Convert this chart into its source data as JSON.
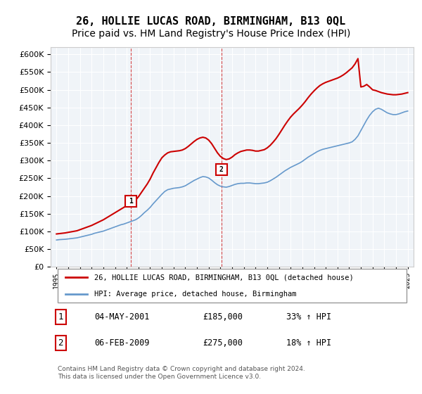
{
  "title": "26, HOLLIE LUCAS ROAD, BIRMINGHAM, B13 0QL",
  "subtitle": "Price paid vs. HM Land Registry's House Price Index (HPI)",
  "title_fontsize": 11,
  "subtitle_fontsize": 10,
  "background_color": "#ffffff",
  "plot_bg_color": "#f0f4f8",
  "grid_color": "#ffffff",
  "sale1_date": 2001.34,
  "sale1_price": 185000,
  "sale1_label": "1",
  "sale2_date": 2009.09,
  "sale2_price": 275000,
  "sale2_label": "2",
  "ylim": [
    0,
    620000
  ],
  "xlim": [
    1994.5,
    2025.5
  ],
  "yticks": [
    0,
    50000,
    100000,
    150000,
    200000,
    250000,
    300000,
    350000,
    400000,
    450000,
    500000,
    550000,
    600000
  ],
  "xtick_years": [
    1995,
    1996,
    1997,
    1998,
    1999,
    2000,
    2001,
    2002,
    2003,
    2004,
    2005,
    2006,
    2007,
    2008,
    2009,
    2010,
    2011,
    2012,
    2013,
    2014,
    2015,
    2016,
    2017,
    2018,
    2019,
    2020,
    2021,
    2022,
    2023,
    2024,
    2025
  ],
  "legend_entries": [
    "26, HOLLIE LUCAS ROAD, BIRMINGHAM, B13 0QL (detached house)",
    "HPI: Average price, detached house, Birmingham"
  ],
  "line_colors": [
    "#cc0000",
    "#6699cc"
  ],
  "annotation1": "1    04-MAY-2001      £185,000       33% ↑ HPI",
  "annotation2": "2    06-FEB-2009      £275,000       18% ↑ HPI",
  "footer": "Contains HM Land Registry data © Crown copyright and database right 2024.\nThis data is licensed under the Open Government Licence v3.0.",
  "hpi_data_x": [
    1995.0,
    1995.25,
    1995.5,
    1995.75,
    1996.0,
    1996.25,
    1996.5,
    1996.75,
    1997.0,
    1997.25,
    1997.5,
    1997.75,
    1998.0,
    1998.25,
    1998.5,
    1998.75,
    1999.0,
    1999.25,
    1999.5,
    1999.75,
    2000.0,
    2000.25,
    2000.5,
    2000.75,
    2001.0,
    2001.25,
    2001.5,
    2001.75,
    2002.0,
    2002.25,
    2002.5,
    2002.75,
    2003.0,
    2003.25,
    2003.5,
    2003.75,
    2004.0,
    2004.25,
    2004.5,
    2004.75,
    2005.0,
    2005.25,
    2005.5,
    2005.75,
    2006.0,
    2006.25,
    2006.5,
    2006.75,
    2007.0,
    2007.25,
    2007.5,
    2007.75,
    2008.0,
    2008.25,
    2008.5,
    2008.75,
    2009.0,
    2009.25,
    2009.5,
    2009.75,
    2010.0,
    2010.25,
    2010.5,
    2010.75,
    2011.0,
    2011.25,
    2011.5,
    2011.75,
    2012.0,
    2012.25,
    2012.5,
    2012.75,
    2013.0,
    2013.25,
    2013.5,
    2013.75,
    2014.0,
    2014.25,
    2014.5,
    2014.75,
    2015.0,
    2015.25,
    2015.5,
    2015.75,
    2016.0,
    2016.25,
    2016.5,
    2016.75,
    2017.0,
    2017.25,
    2017.5,
    2017.75,
    2018.0,
    2018.25,
    2018.5,
    2018.75,
    2019.0,
    2019.25,
    2019.5,
    2019.75,
    2020.0,
    2020.25,
    2020.5,
    2020.75,
    2021.0,
    2021.25,
    2021.5,
    2021.75,
    2022.0,
    2022.25,
    2022.5,
    2022.75,
    2023.0,
    2023.25,
    2023.5,
    2023.75,
    2024.0,
    2024.25,
    2024.5,
    2024.75,
    2025.0
  ],
  "hpi_data_y": [
    76000,
    77000,
    77500,
    78000,
    79000,
    80000,
    81000,
    82000,
    84000,
    86000,
    88000,
    90000,
    92000,
    95000,
    97000,
    99000,
    101000,
    104000,
    107000,
    110000,
    113000,
    116000,
    119000,
    121000,
    124000,
    127000,
    130000,
    133000,
    138000,
    145000,
    153000,
    160000,
    168000,
    178000,
    187000,
    196000,
    205000,
    213000,
    218000,
    220000,
    222000,
    223000,
    224000,
    226000,
    229000,
    234000,
    239000,
    244000,
    248000,
    252000,
    255000,
    254000,
    251000,
    245000,
    238000,
    232000,
    228000,
    226000,
    225000,
    227000,
    230000,
    233000,
    235000,
    236000,
    236000,
    237000,
    237000,
    236000,
    235000,
    235000,
    236000,
    237000,
    239000,
    243000,
    248000,
    253000,
    259000,
    265000,
    271000,
    276000,
    281000,
    285000,
    289000,
    293000,
    298000,
    304000,
    310000,
    315000,
    320000,
    325000,
    329000,
    332000,
    334000,
    336000,
    338000,
    340000,
    342000,
    344000,
    346000,
    348000,
    350000,
    353000,
    360000,
    370000,
    385000,
    400000,
    415000,
    428000,
    438000,
    445000,
    448000,
    445000,
    440000,
    435000,
    432000,
    430000,
    430000,
    432000,
    435000,
    438000,
    440000
  ],
  "house_data_x": [
    1995.0,
    1995.25,
    1995.5,
    1995.75,
    1996.0,
    1996.25,
    1996.5,
    1996.75,
    1997.0,
    1997.25,
    1997.5,
    1997.75,
    1998.0,
    1998.25,
    1998.5,
    1998.75,
    1999.0,
    1999.25,
    1999.5,
    1999.75,
    2000.0,
    2000.25,
    2000.5,
    2000.75,
    2001.0,
    2001.25,
    2001.5,
    2001.75,
    2002.0,
    2002.25,
    2002.5,
    2002.75,
    2003.0,
    2003.25,
    2003.5,
    2003.75,
    2004.0,
    2004.25,
    2004.5,
    2004.75,
    2005.0,
    2005.25,
    2005.5,
    2005.75,
    2006.0,
    2006.25,
    2006.5,
    2006.75,
    2007.0,
    2007.25,
    2007.5,
    2007.75,
    2008.0,
    2008.25,
    2008.5,
    2008.75,
    2009.0,
    2009.25,
    2009.5,
    2009.75,
    2010.0,
    2010.25,
    2010.5,
    2010.75,
    2011.0,
    2011.25,
    2011.5,
    2011.75,
    2012.0,
    2012.25,
    2012.5,
    2012.75,
    2013.0,
    2013.25,
    2013.5,
    2013.75,
    2014.0,
    2014.25,
    2014.5,
    2014.75,
    2015.0,
    2015.25,
    2015.5,
    2015.75,
    2016.0,
    2016.25,
    2016.5,
    2016.75,
    2017.0,
    2017.25,
    2017.5,
    2017.75,
    2018.0,
    2018.25,
    2018.5,
    2018.75,
    2019.0,
    2019.25,
    2019.5,
    2019.75,
    2020.0,
    2020.25,
    2020.5,
    2020.75,
    2021.0,
    2021.25,
    2021.5,
    2021.75,
    2022.0,
    2022.25,
    2022.5,
    2022.75,
    2023.0,
    2023.25,
    2023.5,
    2023.75,
    2024.0,
    2024.25,
    2024.5,
    2024.75,
    2025.0
  ],
  "house_data_y": [
    93000,
    94000,
    95000,
    96000,
    97500,
    99000,
    100500,
    102000,
    105000,
    108000,
    111000,
    114000,
    117000,
    121000,
    125000,
    129000,
    133000,
    138000,
    143000,
    148000,
    153000,
    158000,
    163000,
    168000,
    173000,
    178000,
    183000,
    188000,
    198000,
    210000,
    222000,
    234000,
    248000,
    265000,
    280000,
    295000,
    308000,
    316000,
    322000,
    325000,
    326000,
    327000,
    328000,
    330000,
    334000,
    340000,
    347000,
    354000,
    360000,
    364000,
    366000,
    364000,
    358000,
    348000,
    335000,
    322000,
    312000,
    306000,
    303000,
    305000,
    310000,
    317000,
    322000,
    326000,
    328000,
    330000,
    330000,
    329000,
    327000,
    327000,
    329000,
    331000,
    336000,
    343000,
    352000,
    362000,
    374000,
    387000,
    400000,
    412000,
    423000,
    432000,
    440000,
    448000,
    457000,
    467000,
    478000,
    488000,
    497000,
    505000,
    512000,
    517000,
    521000,
    524000,
    527000,
    530000,
    533000,
    537000,
    542000,
    548000,
    555000,
    562000,
    573000,
    588000,
    508000,
    510000,
    515000,
    508000,
    500000,
    498000,
    495000,
    492000,
    490000,
    488000,
    487000,
    486000,
    486000,
    487000,
    488000,
    490000,
    492000
  ]
}
